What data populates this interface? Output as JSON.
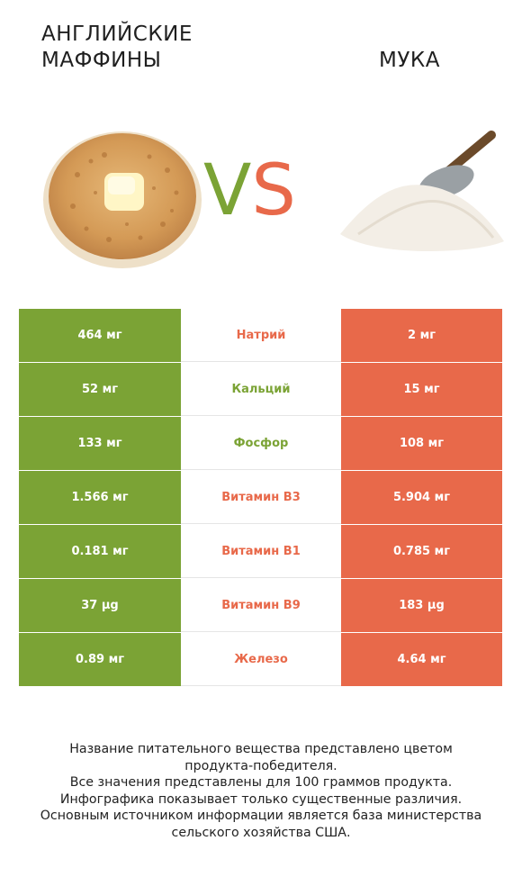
{
  "header": {
    "left_title": [
      "АНГЛИЙСКИЕ",
      "МАФФИНЫ"
    ],
    "right_title": "МУКА",
    "vs_v": "V",
    "vs_s": "S"
  },
  "colors": {
    "winner_left": "#7ba335",
    "winner_right": "#e8694a"
  },
  "rows": [
    {
      "left": "464 мг",
      "nutrient": "Натрий",
      "right": "2 мг",
      "winner": "right"
    },
    {
      "left": "52 мг",
      "nutrient": "Кальций",
      "right": "15 мг",
      "winner": "left"
    },
    {
      "left": "133 мг",
      "nutrient": "Фосфор",
      "right": "108 мг",
      "winner": "left"
    },
    {
      "left": "1.566 мг",
      "nutrient": "Витамин B3",
      "right": "5.904 мг",
      "winner": "right"
    },
    {
      "left": "0.181 мг",
      "nutrient": "Витамин B1",
      "right": "0.785 мг",
      "winner": "right"
    },
    {
      "left": "37 µg",
      "nutrient": "Витамин B9",
      "right": "183 µg",
      "winner": "right"
    },
    {
      "left": "0.89 мг",
      "nutrient": "Железо",
      "right": "4.64 мг",
      "winner": "right"
    }
  ],
  "footer": [
    "Название питательного вещества представлено цветом",
    "продукта-победителя.",
    "Все значения представлены для 100 граммов продукта.",
    "Инфографика показывает только существенные различия.",
    "Основным источником информации является база министерства",
    "сельского хозяйства США."
  ]
}
